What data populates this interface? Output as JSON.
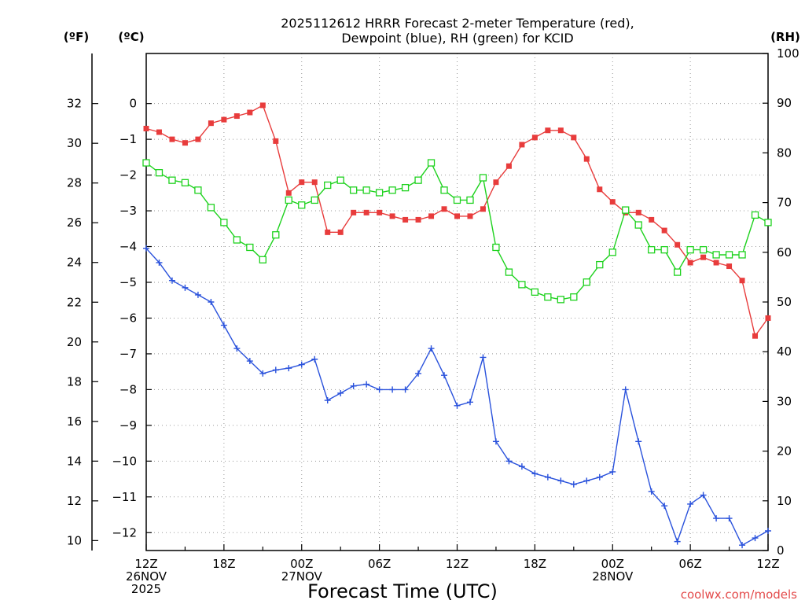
{
  "chart_data": {
    "type": "line",
    "title_line1": "2025112612 HRRR Forecast 2-meter Temperature (red),",
    "title_line2": "Dewpoint (blue), RH (green) for KCID",
    "left_outer_unit": "(ºF)",
    "left_inner_unit": "(ºC)",
    "right_unit": "(RH)",
    "xlabel": "Forecast Time (UTC)",
    "credit": "coolwx.com/models",
    "x_ticks": [
      {
        "hour": 0,
        "lines": [
          "12Z",
          "26NOV",
          "2025"
        ]
      },
      {
        "hour": 6,
        "lines": [
          "18Z"
        ]
      },
      {
        "hour": 12,
        "lines": [
          "00Z",
          "27NOV"
        ]
      },
      {
        "hour": 18,
        "lines": [
          "06Z"
        ]
      },
      {
        "hour": 24,
        "lines": [
          "12Z"
        ]
      },
      {
        "hour": 30,
        "lines": [
          "18Z"
        ]
      },
      {
        "hour": 36,
        "lines": [
          "00Z",
          "28NOV"
        ]
      },
      {
        "hour": 42,
        "lines": [
          "06Z"
        ]
      },
      {
        "hour": 48,
        "lines": [
          "12Z"
        ]
      }
    ],
    "x_range": [
      0,
      48
    ],
    "celsius_range": [
      -12.5,
      1.4
    ],
    "celsius_ticks": [
      0,
      -1,
      -2,
      -3,
      -4,
      -5,
      -6,
      -7,
      -8,
      -9,
      -10,
      -11,
      -12
    ],
    "celsius_tick_labels": [
      "0",
      "−1",
      "−2",
      "−3",
      "−4",
      "−5",
      "−6",
      "−7",
      "−8",
      "−9",
      "−10",
      "−11",
      "−12"
    ],
    "fahrenheit_ticks": [
      32,
      30,
      28,
      26,
      24,
      22,
      20,
      18,
      16,
      14,
      12,
      10
    ],
    "fahrenheit_tick_labels": [
      "32",
      "30",
      "28",
      "26",
      "24",
      "22",
      "20",
      "18",
      "16",
      "14",
      "12",
      "10"
    ],
    "rh_range": [
      0,
      100
    ],
    "rh_ticks": [
      0,
      10,
      20,
      30,
      40,
      50,
      60,
      70,
      80,
      90,
      100
    ],
    "rh_tick_labels": [
      "0",
      "10",
      "20",
      "30",
      "40",
      "50",
      "60",
      "70",
      "80",
      "90",
      "100"
    ],
    "grid": true,
    "series": [
      {
        "axis": "celsius",
        "color": "#e83c3c",
        "marker": "filled-square",
        "x": [
          0,
          1,
          2,
          3,
          4,
          5,
          6,
          7,
          8,
          9,
          10,
          11,
          12,
          13,
          14,
          15,
          16,
          17,
          18,
          19,
          20,
          21,
          22,
          23,
          24,
          25,
          26,
          27,
          28,
          29,
          30,
          31,
          32,
          33,
          34,
          35,
          36,
          37,
          38,
          39,
          40,
          41,
          42,
          43,
          44,
          45,
          46,
          47,
          48
        ],
        "values": [
          -0.7,
          -0.8,
          -1.0,
          -1.1,
          -1.0,
          -0.55,
          -0.45,
          -0.35,
          -0.25,
          -0.05,
          -1.05,
          -2.5,
          -2.2,
          -2.2,
          -3.6,
          -3.6,
          -3.05,
          -3.05,
          -3.05,
          -3.15,
          -3.25,
          -3.25,
          -3.15,
          -2.95,
          -3.15,
          -3.15,
          -2.95,
          -2.2,
          -1.75,
          -1.15,
          -0.95,
          -0.75,
          -0.75,
          -0.95,
          -1.55,
          -2.4,
          -2.75,
          -3.05,
          -3.05,
          -3.25,
          -3.55,
          -3.95,
          -4.45,
          -4.3,
          -4.45,
          -4.55,
          -4.95,
          -6.5,
          -6.0
        ]
      },
      {
        "axis": "celsius",
        "color": "#2a52dc",
        "marker": "plus",
        "x": [
          0,
          1,
          2,
          3,
          4,
          5,
          6,
          7,
          8,
          9,
          10,
          11,
          12,
          13,
          14,
          15,
          16,
          17,
          18,
          19,
          20,
          21,
          22,
          23,
          24,
          25,
          26,
          27,
          28,
          29,
          30,
          31,
          32,
          33,
          34,
          35,
          36,
          37,
          38,
          39,
          40,
          41,
          42,
          43,
          44,
          45,
          46,
          47,
          48
        ],
        "values": [
          -4.05,
          -4.45,
          -4.95,
          -5.15,
          -5.35,
          -5.55,
          -6.2,
          -6.85,
          -7.2,
          -7.55,
          -7.45,
          -7.4,
          -7.3,
          -7.15,
          -8.3,
          -8.1,
          -7.9,
          -7.85,
          -8.0,
          -8.0,
          -8.0,
          -7.55,
          -6.85,
          -7.6,
          -8.45,
          -8.35,
          -7.1,
          -9.45,
          -10.0,
          -10.15,
          -10.35,
          -10.45,
          -10.55,
          -10.65,
          -10.55,
          -10.45,
          -10.3,
          -8.0,
          -9.45,
          -10.85,
          -11.25,
          -12.25,
          -11.2,
          -10.95,
          -11.6,
          -11.6,
          -12.35,
          -12.15,
          -11.95
        ]
      },
      {
        "axis": "rh",
        "color": "#1ed21e",
        "marker": "open-square",
        "x": [
          0,
          1,
          2,
          3,
          4,
          5,
          6,
          7,
          8,
          9,
          10,
          11,
          12,
          13,
          14,
          15,
          16,
          17,
          18,
          19,
          20,
          21,
          22,
          23,
          24,
          25,
          26,
          27,
          28,
          29,
          30,
          31,
          32,
          33,
          34,
          35,
          36,
          37,
          38,
          39,
          40,
          41,
          42,
          43,
          44,
          45,
          46,
          47,
          48
        ],
        "values": [
          78,
          76,
          74.5,
          74,
          72.5,
          69,
          66,
          62.5,
          61,
          58.5,
          63.5,
          70.5,
          69.5,
          70.5,
          73.5,
          74.5,
          72.5,
          72.5,
          72,
          72.5,
          73,
          74.5,
          78,
          72.5,
          70.5,
          70.5,
          75,
          61,
          56,
          53.5,
          52,
          51,
          50.5,
          51,
          54,
          57.5,
          60,
          68.5,
          65.5,
          60.5,
          60.5,
          56,
          60.5,
          60.5,
          59.5,
          59.5,
          59.5,
          67.5,
          66
        ]
      }
    ]
  }
}
